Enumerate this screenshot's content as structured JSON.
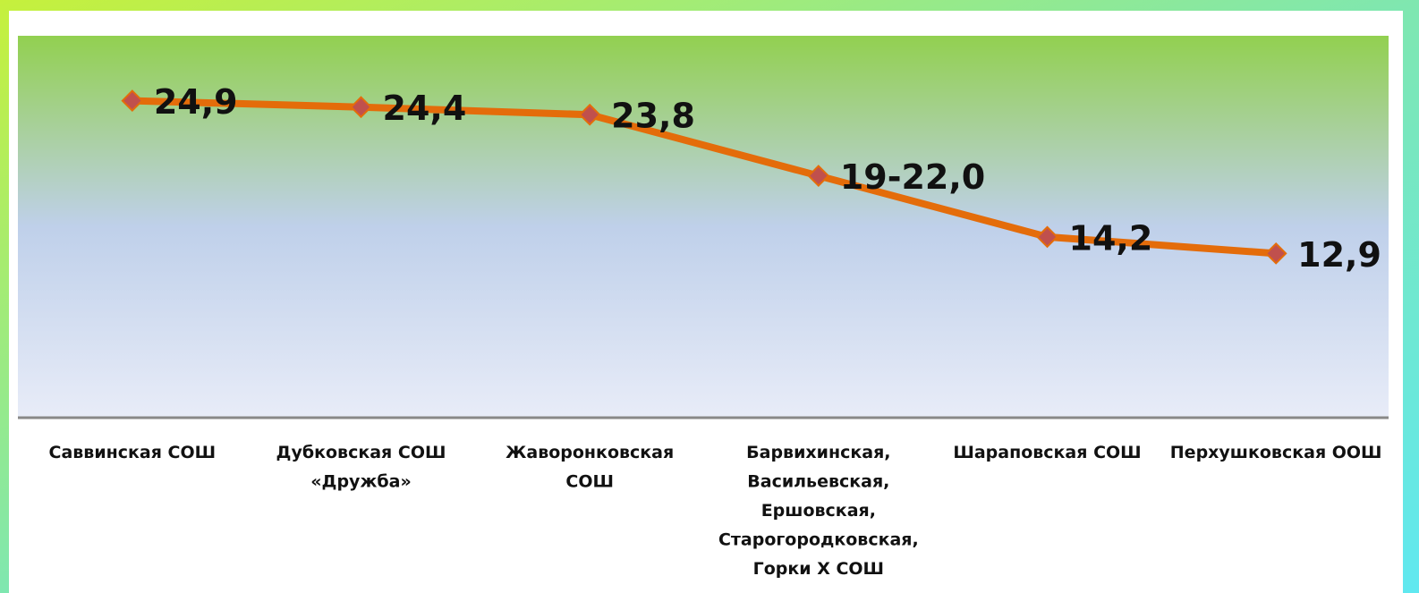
{
  "chart_data": {
    "type": "line",
    "categories": [
      "Саввинская  СОШ",
      "Дубковская  СОШ\n«Дружба»",
      "Жаворонковская\nСОШ",
      "Барвихинская,\nВасильевская,\nЕршовская,\nСтарогородковская,\nГорки Х СОШ",
      "Шараповская  СОШ",
      "Перхушковская  ООШ"
    ],
    "series": [
      {
        "color": "#e46c0a",
        "marker_color": "#c0504d",
        "values": [
          24.9,
          24.4,
          23.8,
          19,
          14.2,
          12.9
        ],
        "value_labels": [
          "24,9",
          "24,4",
          "23,8",
          "19-22,0",
          "14,2",
          "12,9"
        ]
      }
    ],
    "ylim": [
      0,
      30
    ]
  }
}
